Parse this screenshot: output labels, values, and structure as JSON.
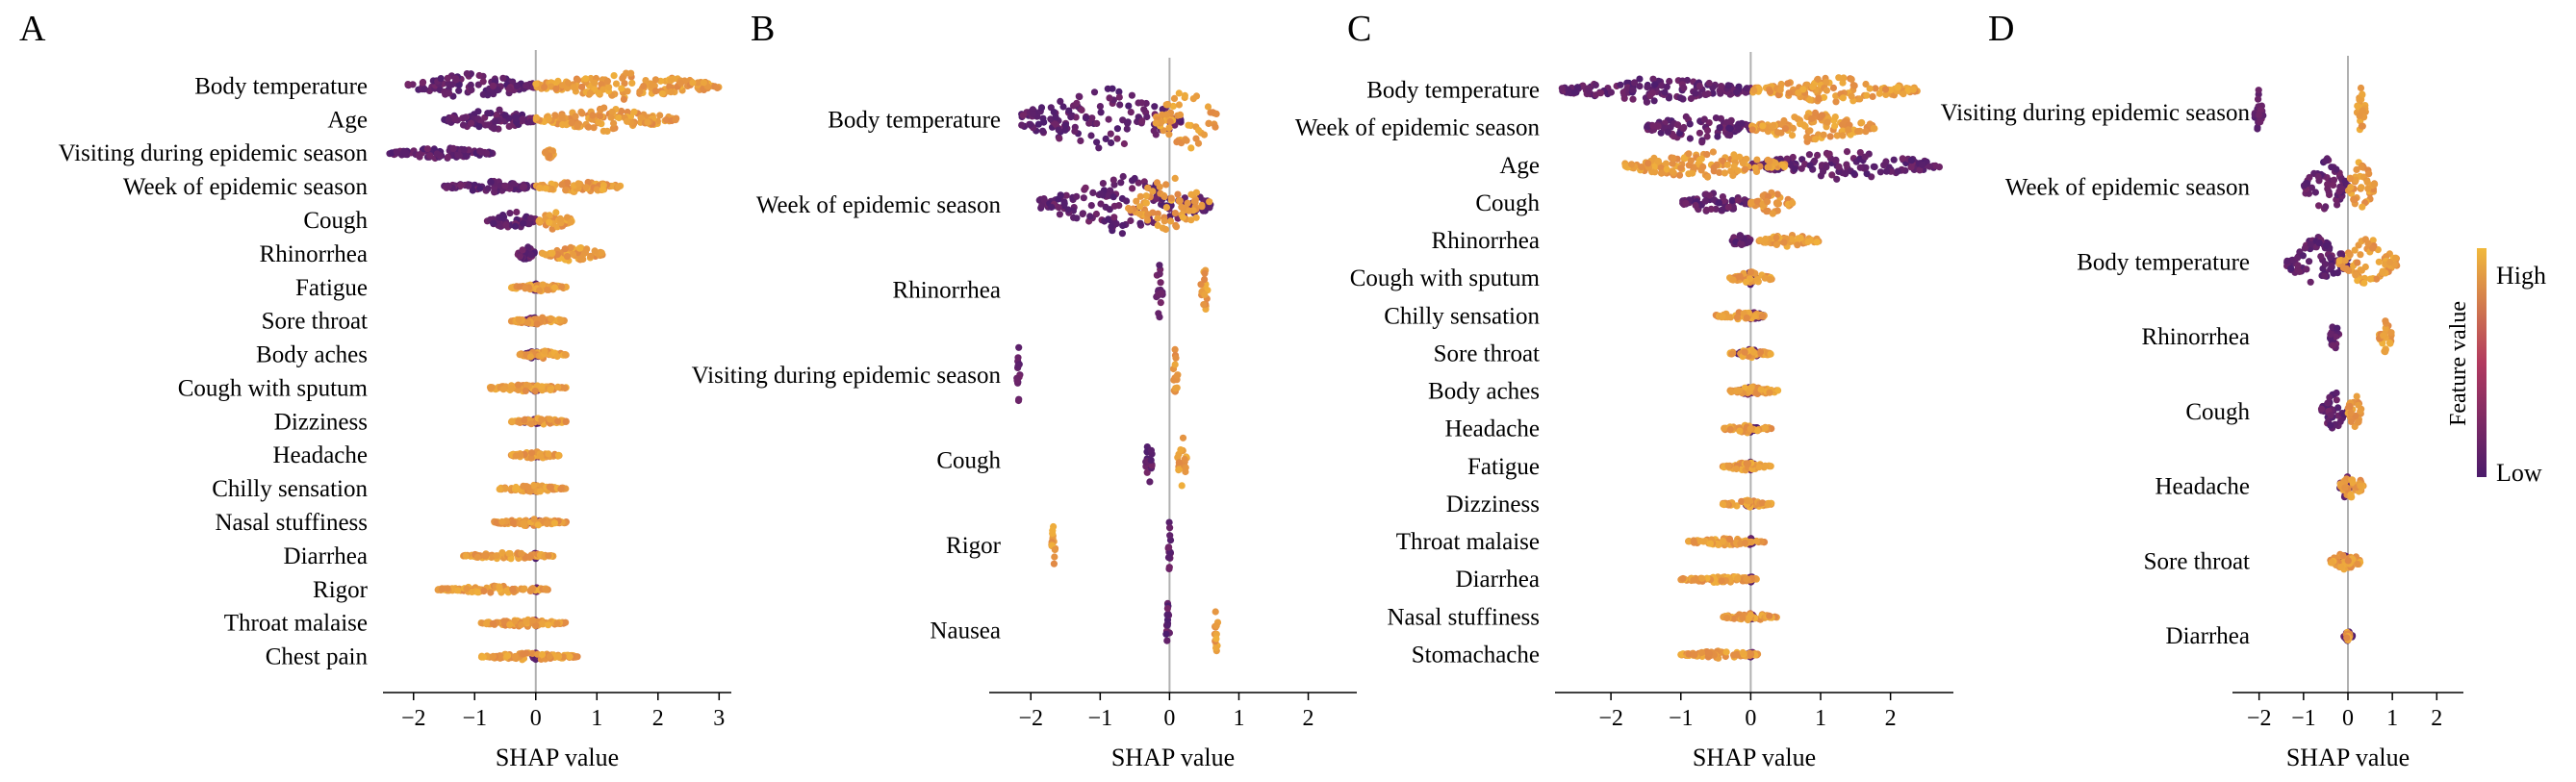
{
  "chart_data": [
    {
      "panel": "A",
      "type": "scatter",
      "subtype": "beeswarm",
      "xlabel": "SHAP value",
      "xticks": [
        -2,
        -1,
        0,
        1,
        2,
        3
      ],
      "xlim": [
        -2.5,
        3.2
      ],
      "features": [
        {
          "name": "Body temperature",
          "pos": [
            0.0,
            3.0
          ],
          "neg": [
            -2.1,
            0.0
          ],
          "spread": 0.35
        },
        {
          "name": "Age",
          "pos": [
            0.0,
            2.3
          ],
          "neg": [
            -1.5,
            0.0
          ],
          "spread": 0.3
        },
        {
          "name": "Visiting during epidemic season",
          "pos": [
            0.15,
            0.3
          ],
          "neg": [
            -2.4,
            -0.7
          ],
          "spread": 0.15
        },
        {
          "name": "Week of epidemic season",
          "pos": [
            0.0,
            1.4
          ],
          "neg": [
            -1.5,
            0.0
          ],
          "spread": 0.15
        },
        {
          "name": "Cough",
          "pos": [
            0.0,
            0.6
          ],
          "neg": [
            -0.8,
            0.0
          ],
          "spread": 0.25
        },
        {
          "name": "Rhinorrhea",
          "pos": [
            0.1,
            1.1
          ],
          "neg": [
            -0.3,
            0.0
          ],
          "spread": 0.2
        },
        {
          "name": "Fatigue",
          "pos": [
            -0.4,
            0.5
          ],
          "neg": [
            -0.1,
            0.1
          ],
          "spread": 0.1
        },
        {
          "name": "Sore throat",
          "pos": [
            -0.4,
            0.5
          ],
          "neg": [
            -0.2,
            0.1
          ],
          "spread": 0.1
        },
        {
          "name": "Body aches",
          "pos": [
            -0.3,
            0.5
          ],
          "neg": [
            -0.2,
            0.1
          ],
          "spread": 0.1
        },
        {
          "name": "Cough with sputum",
          "pos": [
            -0.8,
            0.5
          ],
          "neg": [
            -0.1,
            0.1
          ],
          "spread": 0.08
        },
        {
          "name": "Dizziness",
          "pos": [
            -0.4,
            0.5
          ],
          "neg": [
            -0.2,
            0.1
          ],
          "spread": 0.08
        },
        {
          "name": "Headache",
          "pos": [
            -0.4,
            0.4
          ],
          "neg": [
            -0.1,
            0.1
          ],
          "spread": 0.08
        },
        {
          "name": "Chilly sensation",
          "pos": [
            -0.6,
            0.5
          ],
          "neg": [
            -0.1,
            0.1
          ],
          "spread": 0.08
        },
        {
          "name": "Nasal stuffiness",
          "pos": [
            -0.7,
            0.5
          ],
          "neg": [
            -0.1,
            0.1
          ],
          "spread": 0.06
        },
        {
          "name": "Diarrhea",
          "pos": [
            -1.2,
            0.3
          ],
          "neg": [
            -0.05,
            0.05
          ],
          "spread": 0.06
        },
        {
          "name": "Rigor",
          "pos": [
            -1.6,
            0.2
          ],
          "neg": [
            -0.05,
            0.05
          ],
          "spread": 0.06
        },
        {
          "name": "Throat malaise",
          "pos": [
            -0.9,
            0.5
          ],
          "neg": [
            -0.05,
            0.05
          ],
          "spread": 0.06
        },
        {
          "name": "Chest pain",
          "pos": [
            -0.9,
            0.7
          ],
          "neg": [
            -0.05,
            0.05
          ],
          "spread": 0.06
        }
      ]
    },
    {
      "panel": "B",
      "type": "scatter",
      "subtype": "beeswarm",
      "xlabel": "SHAP value",
      "xticks": [
        -2,
        -1,
        0,
        1,
        2
      ],
      "xlim": [
        -2.6,
        2.7
      ],
      "features": [
        {
          "name": "Body temperature",
          "pos": [
            -0.2,
            0.7
          ],
          "neg": [
            -2.2,
            0.2
          ],
          "spread": 0.45
        },
        {
          "name": "Week of epidemic season",
          "pos": [
            -0.6,
            0.6
          ],
          "neg": [
            -1.9,
            0.6
          ],
          "spread": 0.3
        },
        {
          "name": "Rhinorrhea",
          "pos": [
            0.45,
            0.55
          ],
          "neg": [
            -0.2,
            -0.1
          ],
          "spread": 0.3
        },
        {
          "name": "Visiting during epidemic season",
          "pos": [
            0.05,
            0.12
          ],
          "neg": [
            -2.2,
            -2.15
          ],
          "spread": 0.3
        },
        {
          "name": "Cough",
          "pos": [
            0.1,
            0.25
          ],
          "neg": [
            -0.35,
            -0.25
          ],
          "spread": 0.3
        },
        {
          "name": "Rigor",
          "pos": [
            -1.7,
            -1.65
          ],
          "neg": [
            -0.02,
            0.02
          ],
          "spread": 0.3
        },
        {
          "name": "Nausea",
          "pos": [
            0.65,
            0.7
          ],
          "neg": [
            -0.05,
            0.0
          ],
          "spread": 0.3
        }
      ]
    },
    {
      "panel": "C",
      "type": "scatter",
      "subtype": "beeswarm",
      "xlabel": "SHAP value",
      "xticks": [
        -2,
        -1,
        0,
        1,
        2
      ],
      "xlim": [
        -2.8,
        2.9
      ],
      "features": [
        {
          "name": "Body temperature",
          "pos": [
            0.0,
            2.4
          ],
          "neg": [
            -2.7,
            0.0
          ],
          "spread": 0.3
        },
        {
          "name": "Week of epidemic season",
          "pos": [
            0.0,
            1.8
          ],
          "neg": [
            -1.5,
            0.0
          ],
          "spread": 0.35
        },
        {
          "name": "Age",
          "pos": [
            -1.8,
            0.5
          ],
          "neg": [
            0.0,
            2.7
          ],
          "spread": 0.35
        },
        {
          "name": "Cough",
          "pos": [
            0.0,
            0.6
          ],
          "neg": [
            -1.0,
            0.0
          ],
          "spread": 0.25
        },
        {
          "name": "Rhinorrhea",
          "pos": [
            0.1,
            1.0
          ],
          "neg": [
            -0.3,
            0.0
          ],
          "spread": 0.15
        },
        {
          "name": "Cough with sputum",
          "pos": [
            -0.3,
            0.3
          ],
          "neg": [
            -0.1,
            0.1
          ],
          "spread": 0.15
        },
        {
          "name": "Chilly sensation",
          "pos": [
            -0.5,
            0.2
          ],
          "neg": [
            -0.1,
            0.2
          ],
          "spread": 0.1
        },
        {
          "name": "Sore throat",
          "pos": [
            -0.3,
            0.3
          ],
          "neg": [
            -0.2,
            0.2
          ],
          "spread": 0.1
        },
        {
          "name": "Body aches",
          "pos": [
            -0.3,
            0.4
          ],
          "neg": [
            -0.2,
            0.2
          ],
          "spread": 0.1
        },
        {
          "name": "Headache",
          "pos": [
            -0.4,
            0.3
          ],
          "neg": [
            -0.1,
            0.1
          ],
          "spread": 0.1
        },
        {
          "name": "Fatigue",
          "pos": [
            -0.4,
            0.3
          ],
          "neg": [
            -0.1,
            0.1
          ],
          "spread": 0.1
        },
        {
          "name": "Dizziness",
          "pos": [
            -0.4,
            0.3
          ],
          "neg": [
            -0.1,
            0.1
          ],
          "spread": 0.08
        },
        {
          "name": "Throat malaise",
          "pos": [
            -0.9,
            0.2
          ],
          "neg": [
            -0.05,
            0.05
          ],
          "spread": 0.06
        },
        {
          "name": "Diarrhea",
          "pos": [
            -1.0,
            0.1
          ],
          "neg": [
            -0.05,
            0.05
          ],
          "spread": 0.06
        },
        {
          "name": "Nasal stuffiness",
          "pos": [
            -0.4,
            0.4
          ],
          "neg": [
            -0.05,
            0.05
          ],
          "spread": 0.06
        },
        {
          "name": "Stomachache",
          "pos": [
            -1.0,
            0.1
          ],
          "neg": [
            -0.05,
            0.05
          ],
          "spread": 0.06
        }
      ]
    },
    {
      "panel": "D",
      "type": "scatter",
      "subtype": "beeswarm",
      "xlabel": "SHAP value",
      "xticks": [
        -2,
        -1,
        0,
        1,
        2
      ],
      "xlim": [
        -2.6,
        2.6
      ],
      "features": [
        {
          "name": "Visiting during epidemic season",
          "pos": [
            0.2,
            0.4
          ],
          "neg": [
            -2.1,
            -1.9
          ],
          "spread": 0.3
        },
        {
          "name": "Week of epidemic season",
          "pos": [
            0.0,
            0.6
          ],
          "neg": [
            -1.0,
            0.0
          ],
          "spread": 0.35
        },
        {
          "name": "Body temperature",
          "pos": [
            -0.2,
            1.1
          ],
          "neg": [
            -1.4,
            0.0
          ],
          "spread": 0.3
        },
        {
          "name": "Rhinorrhea",
          "pos": [
            0.7,
            1.0
          ],
          "neg": [
            -0.4,
            -0.2
          ],
          "spread": 0.2
        },
        {
          "name": "Cough",
          "pos": [
            0.0,
            0.3
          ],
          "neg": [
            -0.6,
            0.0
          ],
          "spread": 0.25
        },
        {
          "name": "Headache",
          "pos": [
            -0.2,
            0.4
          ],
          "neg": [
            -0.2,
            0.1
          ],
          "spread": 0.15
        },
        {
          "name": "Sore throat",
          "pos": [
            -0.4,
            0.3
          ],
          "neg": [
            -0.2,
            0.1
          ],
          "spread": 0.12
        },
        {
          "name": "Diarrhea",
          "pos": [
            -0.05,
            0.05
          ],
          "neg": [
            -0.1,
            0.1
          ],
          "spread": 0.06
        }
      ]
    }
  ],
  "panel_letters": [
    "A",
    "B",
    "C",
    "D"
  ],
  "colorbar": {
    "label": "Feature value",
    "high_label": "High",
    "low_label": "Low",
    "high_color": "#f1b93c",
    "mid_color": "#b23a5f",
    "low_color": "#4b1b6b"
  },
  "colors": {
    "high": "#f0b03b",
    "mid": "#c0395a",
    "low": "#4c1d6e",
    "zero_line": "#b0b0b0"
  }
}
